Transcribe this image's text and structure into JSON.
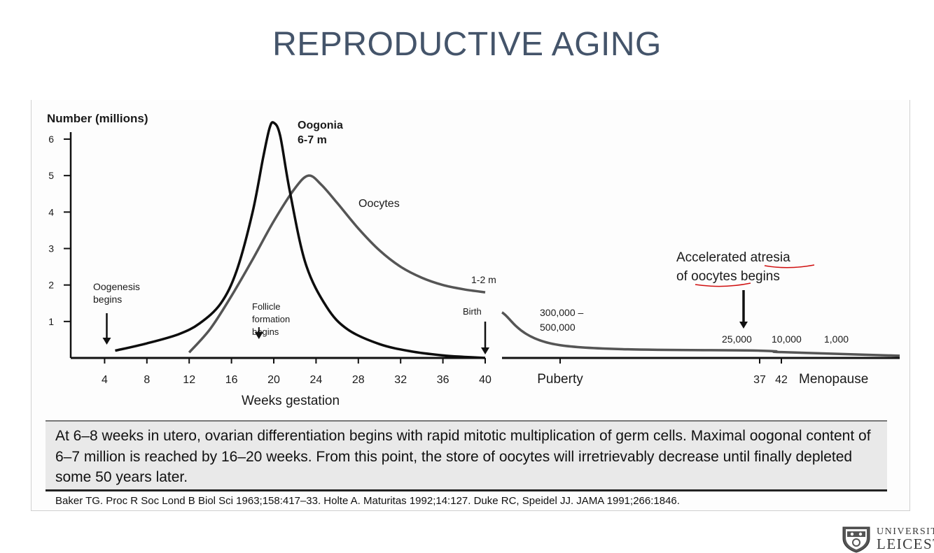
{
  "slide": {
    "title": "REPRODUCTIVE AGING"
  },
  "chart_data": {
    "type": "line",
    "ylabel": "Number (millions)",
    "xlabel": "Weeks gestation",
    "ylim": [
      0,
      6.5
    ],
    "y_ticks": [
      1,
      2,
      3,
      4,
      5,
      6
    ],
    "x_ticks_gestation": [
      4,
      8,
      12,
      16,
      20,
      24,
      28,
      32,
      36,
      40
    ],
    "xlim_gestation": [
      0,
      40
    ],
    "postnatal_ticks": [
      "Puberty",
      "37",
      "42",
      "Menopause"
    ],
    "series": [
      {
        "name": "Oogonia",
        "color": "#0d0d0d",
        "x": [
          5,
          8,
          11,
          13,
          15,
          16.5,
          18,
          19,
          19.6,
          20,
          20.6,
          21.5,
          23,
          25,
          27,
          30,
          33,
          36,
          38,
          40
        ],
        "y": [
          0.2,
          0.4,
          0.65,
          0.95,
          1.5,
          2.4,
          4.0,
          5.5,
          6.3,
          6.45,
          6.1,
          4.6,
          2.6,
          1.4,
          0.78,
          0.38,
          0.18,
          0.07,
          0.03,
          0.0
        ]
      },
      {
        "name": "Oocytes",
        "color": "#555555",
        "x": [
          12,
          14,
          16,
          18,
          20,
          22,
          23.3,
          24.5,
          26,
          28,
          30,
          32,
          34,
          36,
          38,
          40
        ],
        "y": [
          0.15,
          0.8,
          1.7,
          2.7,
          3.75,
          4.65,
          5.0,
          4.75,
          4.25,
          3.55,
          2.95,
          2.5,
          2.2,
          2.0,
          1.88,
          1.8
        ]
      },
      {
        "name": "Postnatal oocytes",
        "color": "#555555",
        "stages": [
          "Birth",
          "Puberty",
          "37",
          "42",
          "Menopause"
        ],
        "y": [
          1.25,
          0.35,
          0.2,
          0.16,
          0.06
        ]
      }
    ],
    "annotations": [
      {
        "text_lines": [
          "Oogonia",
          "6-7 m"
        ]
      },
      {
        "text_lines": [
          "Oocytes"
        ]
      },
      {
        "text_lines": [
          "Oogenesis",
          "begins"
        ],
        "x": 5
      },
      {
        "text_lines": [
          "Follicle",
          "formation",
          "begins"
        ],
        "x": 18
      },
      {
        "text_lines": [
          "Birth"
        ],
        "x": 40
      },
      {
        "text_lines": [
          "1-2 m"
        ]
      },
      {
        "text_lines": [
          "300,000 –",
          "500,000"
        ]
      },
      {
        "text_lines": [
          "25,000"
        ]
      },
      {
        "text_lines": [
          "10,000"
        ]
      },
      {
        "text_lines": [
          "1,000"
        ]
      },
      {
        "text_lines": [
          "Accelerated atresia",
          "of oocytes begins"
        ]
      }
    ]
  },
  "figure": {
    "summary": "At 6–8 weeks in utero, ovarian differentiation begins with rapid mitotic multiplication of germ cells. Maximal oogonal content of 6–7 million is reached by 16–20 weeks. From this point, the store of oocytes will irretrievably decrease until finally depleted some 50 years later.",
    "citation": "Baker TG. Proc R Soc Lond B Biol Sci 1963;158:417–33. Holte A. Maturitas 1992;14:127. Duke RC, Speidel JJ. JAMA 1991;266:1846."
  },
  "logo": {
    "line1": "UNIVERSITY OF",
    "line2": "LEICESTER"
  },
  "colors": {
    "title": "#44546a",
    "summary_bg": "#e9e9e9",
    "annotation_underline": "#d01010"
  }
}
